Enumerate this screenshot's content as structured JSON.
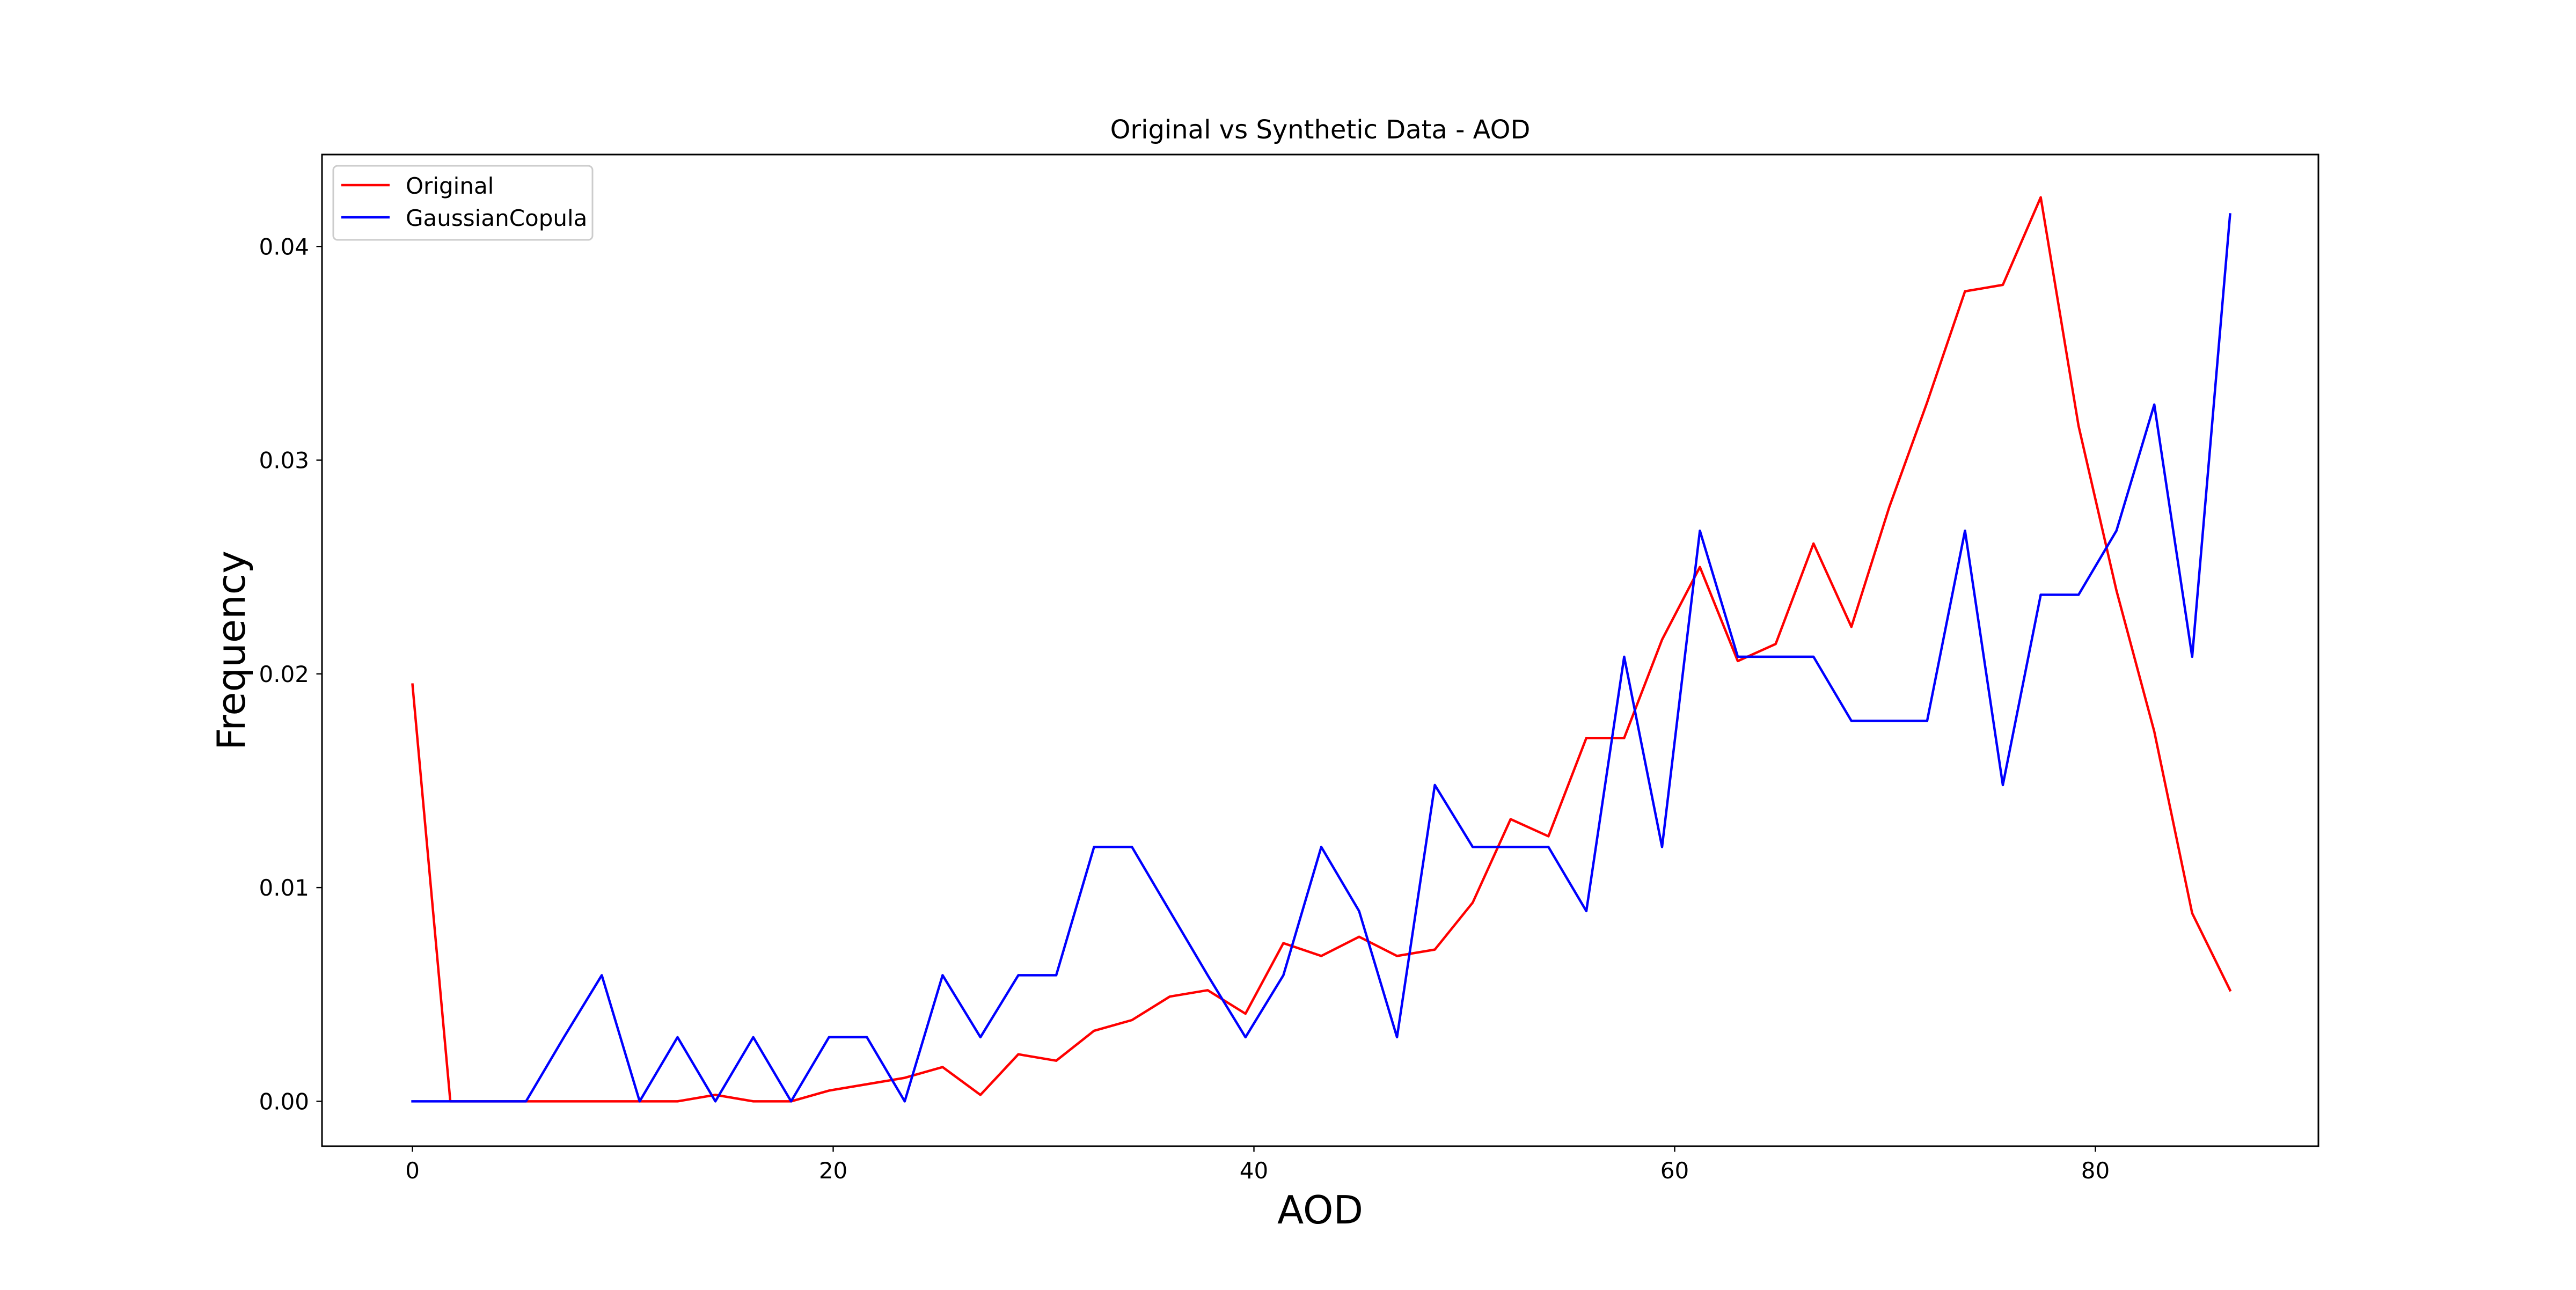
{
  "chart_data": {
    "type": "line",
    "title": "Original vs Synthetic Data - AOD",
    "xlabel": "AOD",
    "ylabel": "Frequency",
    "xlim": [
      -4.3,
      90.6
    ],
    "ylim": [
      -0.0021,
      0.0443
    ],
    "x_ticks": [
      0,
      20,
      40,
      60,
      80
    ],
    "x_tick_labels": [
      "0",
      "20",
      "40",
      "60",
      "80"
    ],
    "y_ticks": [
      0.0,
      0.01,
      0.02,
      0.03,
      0.04
    ],
    "y_tick_labels": [
      "0.00",
      "0.01",
      "0.02",
      "0.03",
      "0.04"
    ],
    "grid": false,
    "legend_position": "top-left",
    "x": [
      0.0,
      1.8,
      3.6,
      5.4,
      7.2,
      9.0,
      10.8,
      12.6,
      14.4,
      16.2,
      18.0,
      19.8,
      21.6,
      23.4,
      25.2,
      27.0,
      28.8,
      30.6,
      32.4,
      34.2,
      36.0,
      37.8,
      39.6,
      41.4,
      43.2,
      45.0,
      46.8,
      48.6,
      50.4,
      52.2,
      54.0,
      55.8,
      57.6,
      59.4,
      61.2,
      63.0,
      64.8,
      66.6,
      68.4,
      70.2,
      72.0,
      73.8,
      75.6,
      77.4,
      79.2,
      81.0,
      82.8,
      84.6,
      86.4
    ],
    "series": [
      {
        "name": "Original",
        "color": "#ff0000",
        "values": [
          0.0195,
          0.0,
          0.0,
          0.0,
          0.0,
          0.0,
          0.0,
          0.0,
          0.0003,
          0.0,
          0.0,
          0.0005,
          0.0008,
          0.0011,
          0.0016,
          0.0003,
          0.0022,
          0.0019,
          0.0033,
          0.0038,
          0.0049,
          0.0052,
          0.0041,
          0.0074,
          0.0068,
          0.0077,
          0.0068,
          0.0071,
          0.0093,
          0.0132,
          0.0124,
          0.017,
          0.017,
          0.0216,
          0.025,
          0.0206,
          0.0214,
          0.0261,
          0.0222,
          0.0278,
          0.0327,
          0.0379,
          0.0382,
          0.0423,
          0.0316,
          0.0239,
          0.0173,
          0.0088,
          0.0052
        ]
      },
      {
        "name": "GaussianCopula",
        "color": "#0000ff",
        "values": [
          0.0,
          0.0,
          0.0,
          0.0,
          0.003,
          0.0059,
          0.0,
          0.003,
          0.0,
          0.003,
          0.0,
          0.003,
          0.003,
          0.0,
          0.0059,
          0.003,
          0.0059,
          0.0059,
          0.0119,
          0.0119,
          0.0089,
          0.0059,
          0.003,
          0.0059,
          0.0119,
          0.0089,
          0.003,
          0.0148,
          0.0119,
          0.0119,
          0.0119,
          0.0089,
          0.0208,
          0.0119,
          0.0267,
          0.0208,
          0.0208,
          0.0208,
          0.0178,
          0.0178,
          0.0178,
          0.0267,
          0.0148,
          0.0237,
          0.0237,
          0.0267,
          0.0326,
          0.0208,
          0.0415
        ]
      }
    ]
  }
}
